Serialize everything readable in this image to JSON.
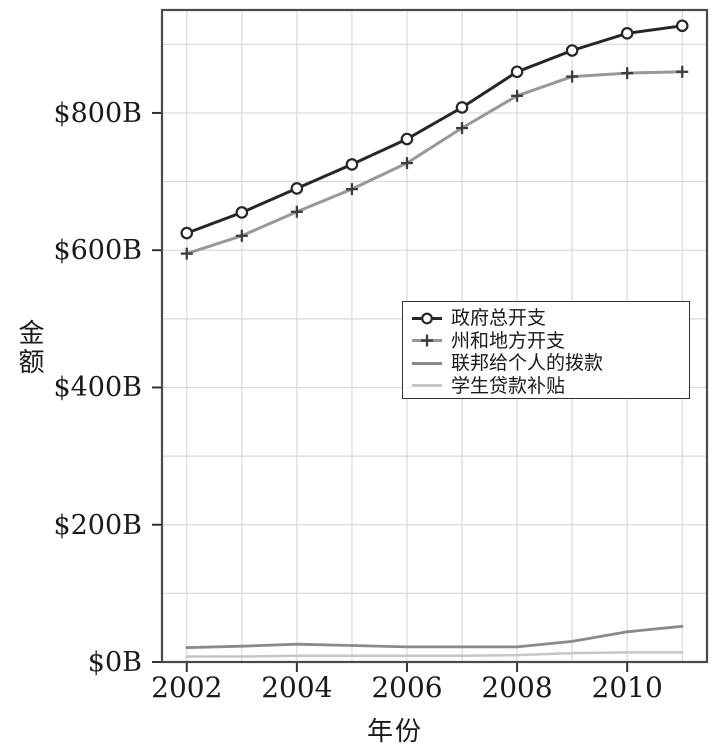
{
  "page": {
    "background": "#ffffff"
  },
  "chart_data": {
    "type": "line",
    "title": "",
    "xlabel": "年份",
    "ylabel": "金额",
    "unit": "billions USD",
    "x": [
      2002,
      2003,
      2004,
      2005,
      2006,
      2007,
      2008,
      2009,
      2010,
      2011
    ],
    "xlim": [
      2001.55,
      2011.45
    ],
    "ylim": [
      0,
      950
    ],
    "grid": {
      "vertical": "every-year",
      "horizontal_interval": 100,
      "color": "#d9d9d9"
    },
    "x_ticks": [
      {
        "value": 2002,
        "label": "2002"
      },
      {
        "value": 2004,
        "label": "2004"
      },
      {
        "value": 2006,
        "label": "2006"
      },
      {
        "value": 2008,
        "label": "2008"
      },
      {
        "value": 2010,
        "label": "2010"
      }
    ],
    "y_ticks": [
      {
        "value": 0,
        "label": "$0B"
      },
      {
        "value": 200,
        "label": "$200B"
      },
      {
        "value": 400,
        "label": "$400B"
      },
      {
        "value": 600,
        "label": "$600B"
      },
      {
        "value": 800,
        "label": "$800B"
      }
    ],
    "series": [
      {
        "name": "政府总开支",
        "marker": "circle",
        "line_color": "#262626",
        "marker_color": "#262626",
        "line_width": 3,
        "values": [
          625,
          655,
          690,
          725,
          762,
          808,
          860,
          891,
          916,
          927
        ]
      },
      {
        "name": "州和地方开支",
        "marker": "plus",
        "line_color": "#989898",
        "marker_color": "#3d3d3d",
        "line_width": 3,
        "values": [
          595,
          621,
          656,
          689,
          727,
          778,
          825,
          853,
          858,
          860
        ]
      },
      {
        "name": "联邦给个人的拨款",
        "marker": "none",
        "line_color": "#8a8a8a",
        "marker_color": "#8a8a8a",
        "line_width": 2.8,
        "values": [
          21,
          23,
          26,
          24,
          22,
          22,
          22,
          30,
          44,
          52
        ]
      },
      {
        "name": "学生贷款补贴",
        "marker": "none",
        "line_color": "#c6c6c6",
        "marker_color": "#c6c6c6",
        "line_width": 2.5,
        "values": [
          8,
          8,
          9,
          9,
          9,
          9,
          10,
          13,
          14,
          14
        ]
      }
    ],
    "legend": {
      "position": "middle-right",
      "border_color": "#333333",
      "background": "#ffffff"
    },
    "axis": {
      "border_color": "#4a4a4a",
      "tick_color": "#333333",
      "text_color": "#1a1a1a"
    }
  }
}
